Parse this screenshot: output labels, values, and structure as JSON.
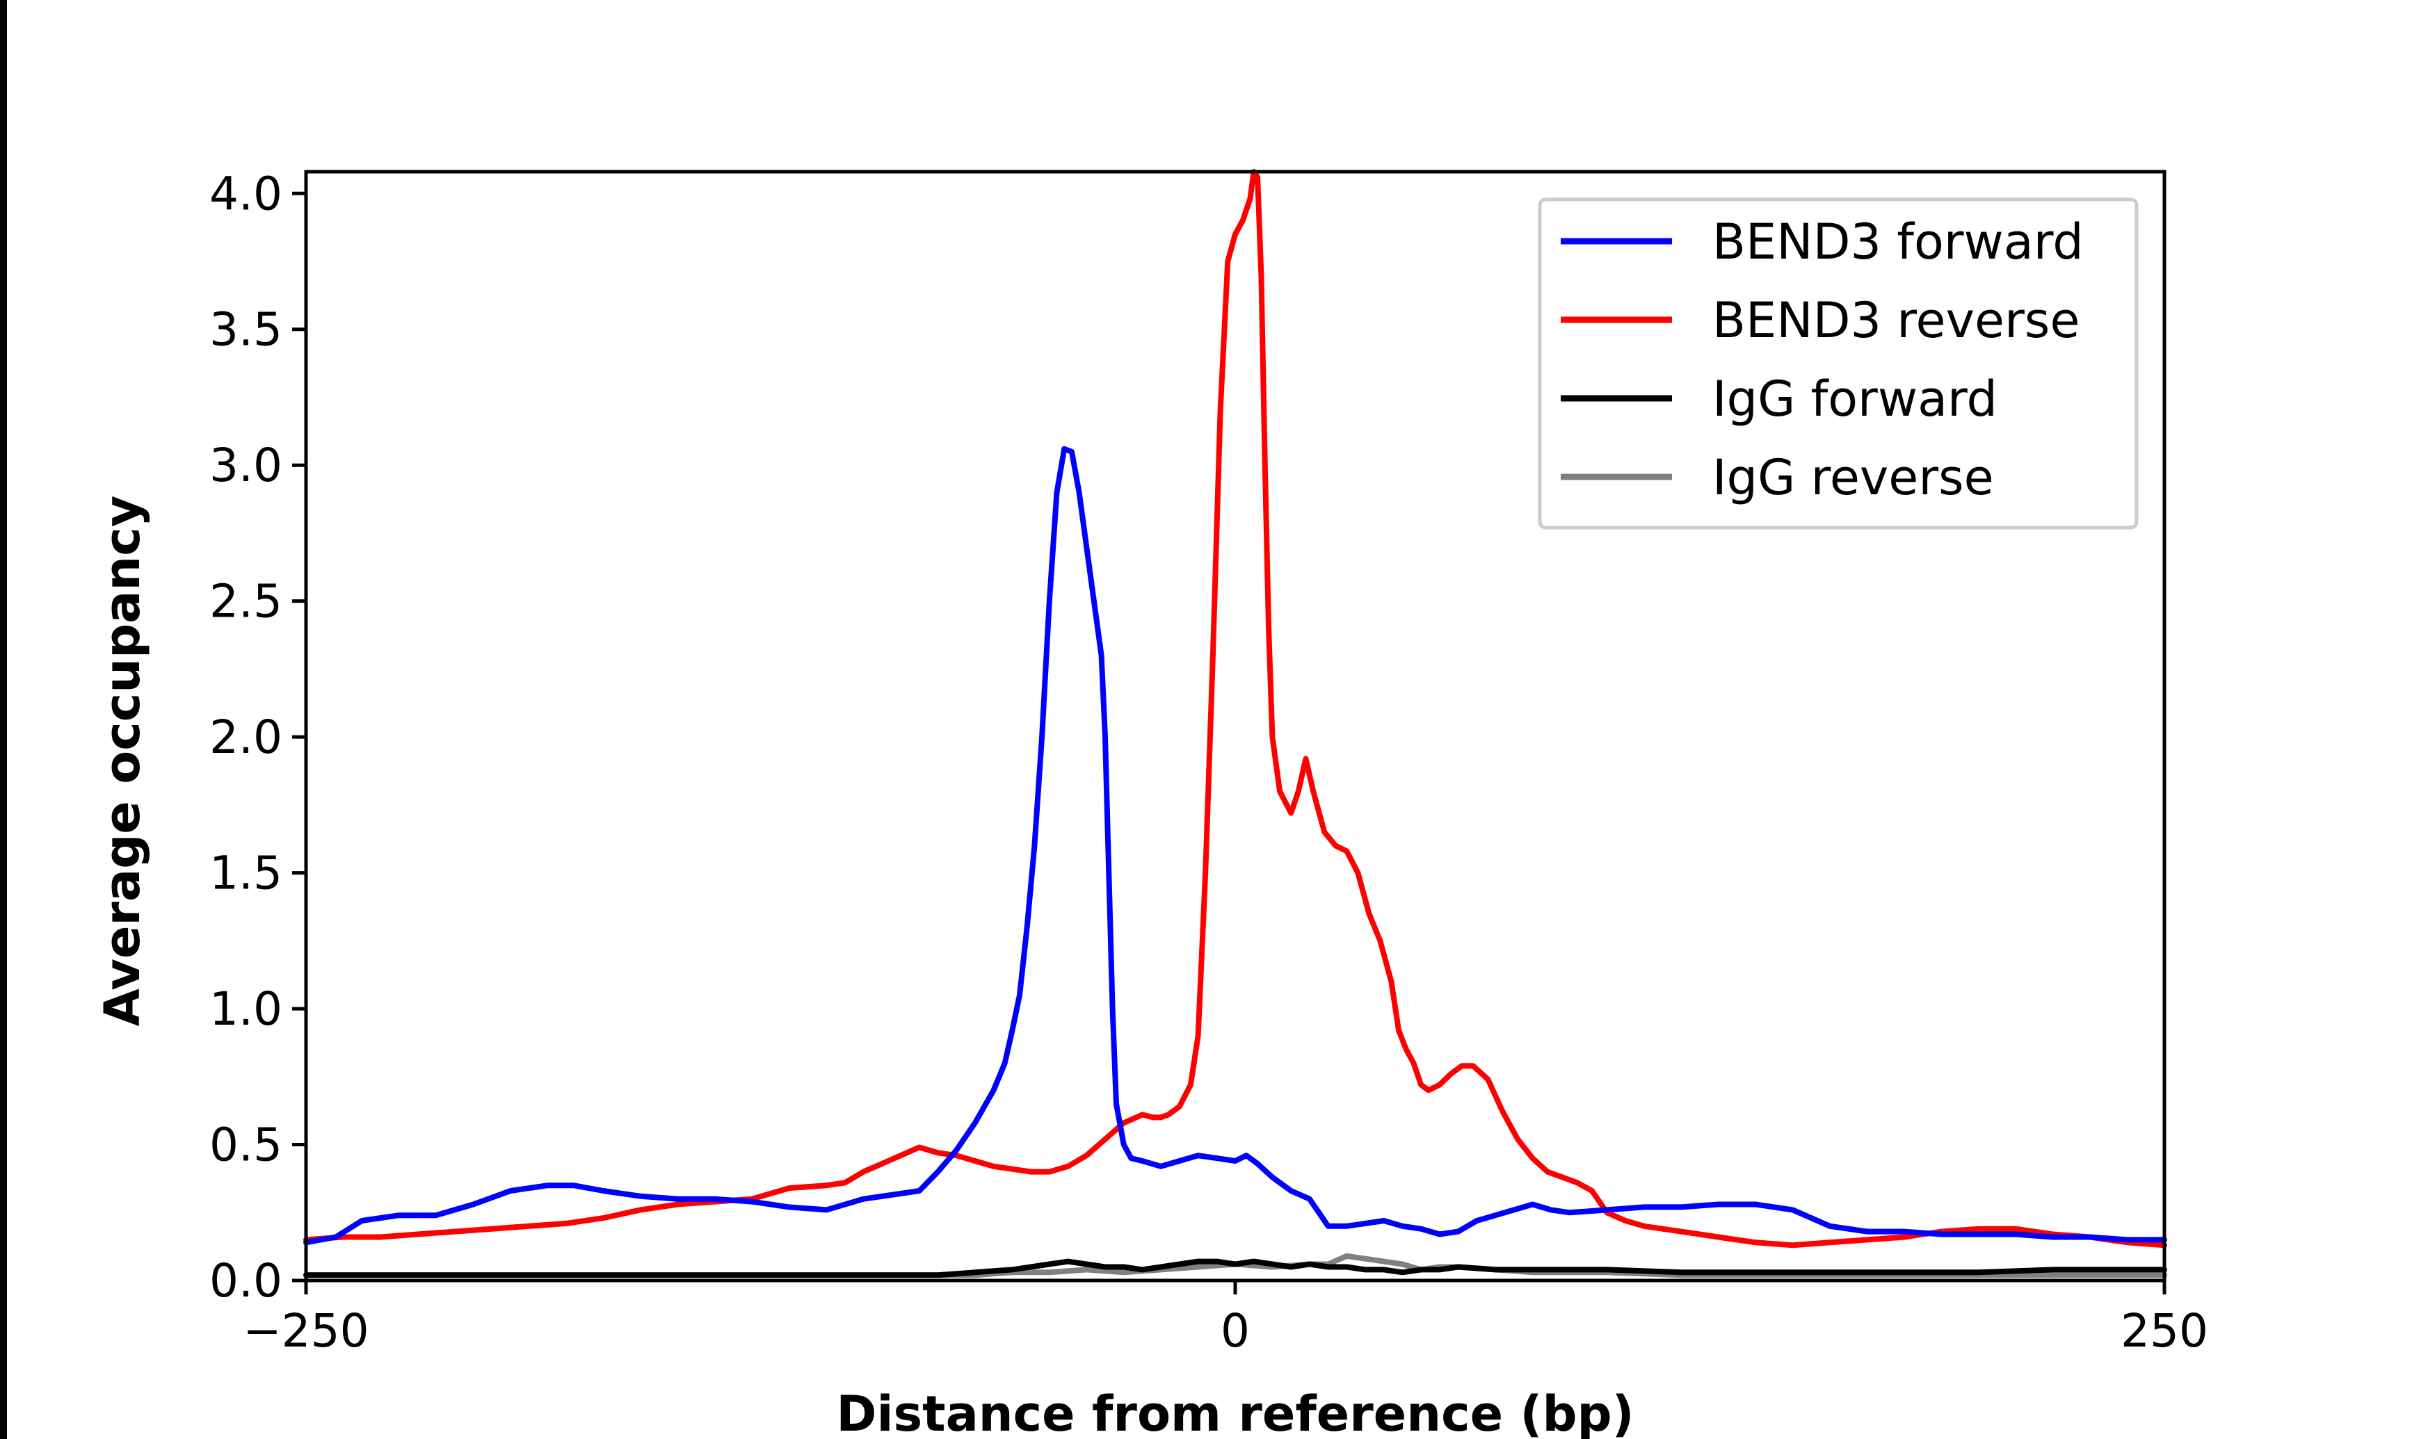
{
  "chart_data": {
    "type": "line",
    "title": "",
    "xlabel": "Distance from reference (bp)",
    "ylabel": "Average occupancy",
    "xlim": [
      -250,
      250
    ],
    "ylim": [
      0,
      4.08
    ],
    "xticks": [
      -250,
      0,
      250
    ],
    "xtick_labels": [
      "−250",
      "0",
      "250"
    ],
    "yticks": [
      0.0,
      0.5,
      1.0,
      1.5,
      2.0,
      2.5,
      3.0,
      3.5,
      4.0
    ],
    "ytick_labels": [
      "0.0",
      "0.5",
      "1.0",
      "1.5",
      "2.0",
      "2.5",
      "3.0",
      "3.5",
      "4.0"
    ],
    "grid": false,
    "legend_position": "top-right",
    "series": [
      {
        "name": "BEND3 forward",
        "color": "#0000ff",
        "points": [
          [
            -250,
            0.14
          ],
          [
            -242,
            0.16
          ],
          [
            -235,
            0.22
          ],
          [
            -225,
            0.24
          ],
          [
            -215,
            0.24
          ],
          [
            -205,
            0.28
          ],
          [
            -195,
            0.33
          ],
          [
            -185,
            0.35
          ],
          [
            -178,
            0.35
          ],
          [
            -170,
            0.33
          ],
          [
            -160,
            0.31
          ],
          [
            -150,
            0.3
          ],
          [
            -140,
            0.3
          ],
          [
            -130,
            0.29
          ],
          [
            -120,
            0.27
          ],
          [
            -110,
            0.26
          ],
          [
            -100,
            0.3
          ],
          [
            -90,
            0.32
          ],
          [
            -85,
            0.33
          ],
          [
            -80,
            0.4
          ],
          [
            -75,
            0.48
          ],
          [
            -70,
            0.58
          ],
          [
            -65,
            0.7
          ],
          [
            -62,
            0.8
          ],
          [
            -60,
            0.92
          ],
          [
            -58,
            1.05
          ],
          [
            -56,
            1.3
          ],
          [
            -54,
            1.6
          ],
          [
            -52,
            2.0
          ],
          [
            -50,
            2.5
          ],
          [
            -48,
            2.9
          ],
          [
            -46,
            3.06
          ],
          [
            -44,
            3.05
          ],
          [
            -42,
            2.9
          ],
          [
            -40,
            2.7
          ],
          [
            -38,
            2.5
          ],
          [
            -36,
            2.3
          ],
          [
            -35,
            2.0
          ],
          [
            -34,
            1.5
          ],
          [
            -33,
            1.0
          ],
          [
            -32,
            0.65
          ],
          [
            -30,
            0.5
          ],
          [
            -28,
            0.45
          ],
          [
            -25,
            0.44
          ],
          [
            -20,
            0.42
          ],
          [
            -15,
            0.44
          ],
          [
            -10,
            0.46
          ],
          [
            -5,
            0.45
          ],
          [
            0,
            0.44
          ],
          [
            3,
            0.46
          ],
          [
            6,
            0.43
          ],
          [
            10,
            0.38
          ],
          [
            15,
            0.33
          ],
          [
            20,
            0.3
          ],
          [
            25,
            0.2
          ],
          [
            30,
            0.2
          ],
          [
            35,
            0.21
          ],
          [
            40,
            0.22
          ],
          [
            45,
            0.2
          ],
          [
            50,
            0.19
          ],
          [
            55,
            0.17
          ],
          [
            60,
            0.18
          ],
          [
            65,
            0.22
          ],
          [
            70,
            0.24
          ],
          [
            75,
            0.26
          ],
          [
            80,
            0.28
          ],
          [
            85,
            0.26
          ],
          [
            90,
            0.25
          ],
          [
            100,
            0.26
          ],
          [
            110,
            0.27
          ],
          [
            120,
            0.27
          ],
          [
            130,
            0.28
          ],
          [
            140,
            0.28
          ],
          [
            150,
            0.26
          ],
          [
            160,
            0.2
          ],
          [
            170,
            0.18
          ],
          [
            180,
            0.18
          ],
          [
            190,
            0.17
          ],
          [
            200,
            0.17
          ],
          [
            210,
            0.17
          ],
          [
            220,
            0.16
          ],
          [
            230,
            0.16
          ],
          [
            240,
            0.15
          ],
          [
            250,
            0.15
          ]
        ]
      },
      {
        "name": "BEND3 reverse",
        "color": "#ff0000",
        "points": [
          [
            -250,
            0.15
          ],
          [
            -240,
            0.16
          ],
          [
            -230,
            0.16
          ],
          [
            -220,
            0.17
          ],
          [
            -210,
            0.18
          ],
          [
            -200,
            0.19
          ],
          [
            -190,
            0.2
          ],
          [
            -180,
            0.21
          ],
          [
            -170,
            0.23
          ],
          [
            -160,
            0.26
          ],
          [
            -150,
            0.28
          ],
          [
            -140,
            0.29
          ],
          [
            -130,
            0.3
          ],
          [
            -120,
            0.34
          ],
          [
            -110,
            0.35
          ],
          [
            -105,
            0.36
          ],
          [
            -100,
            0.4
          ],
          [
            -95,
            0.43
          ],
          [
            -90,
            0.46
          ],
          [
            -85,
            0.49
          ],
          [
            -80,
            0.47
          ],
          [
            -75,
            0.46
          ],
          [
            -70,
            0.44
          ],
          [
            -65,
            0.42
          ],
          [
            -60,
            0.41
          ],
          [
            -55,
            0.4
          ],
          [
            -50,
            0.4
          ],
          [
            -45,
            0.42
          ],
          [
            -40,
            0.46
          ],
          [
            -35,
            0.52
          ],
          [
            -30,
            0.58
          ],
          [
            -25,
            0.61
          ],
          [
            -22,
            0.6
          ],
          [
            -20,
            0.6
          ],
          [
            -18,
            0.61
          ],
          [
            -15,
            0.64
          ],
          [
            -12,
            0.72
          ],
          [
            -10,
            0.9
          ],
          [
            -8,
            1.5
          ],
          [
            -6,
            2.3
          ],
          [
            -4,
            3.2
          ],
          [
            -2,
            3.75
          ],
          [
            0,
            3.85
          ],
          [
            2,
            3.9
          ],
          [
            4,
            3.98
          ],
          [
            5,
            4.08
          ],
          [
            6,
            4.06
          ],
          [
            7,
            3.7
          ],
          [
            8,
            3.0
          ],
          [
            9,
            2.4
          ],
          [
            10,
            2.0
          ],
          [
            12,
            1.8
          ],
          [
            15,
            1.72
          ],
          [
            17,
            1.8
          ],
          [
            19,
            1.92
          ],
          [
            21,
            1.8
          ],
          [
            24,
            1.65
          ],
          [
            27,
            1.6
          ],
          [
            30,
            1.58
          ],
          [
            33,
            1.5
          ],
          [
            36,
            1.35
          ],
          [
            39,
            1.25
          ],
          [
            42,
            1.1
          ],
          [
            44,
            0.92
          ],
          [
            46,
            0.85
          ],
          [
            48,
            0.8
          ],
          [
            50,
            0.72
          ],
          [
            52,
            0.7
          ],
          [
            55,
            0.72
          ],
          [
            58,
            0.76
          ],
          [
            61,
            0.79
          ],
          [
            64,
            0.79
          ],
          [
            68,
            0.74
          ],
          [
            72,
            0.62
          ],
          [
            76,
            0.52
          ],
          [
            80,
            0.45
          ],
          [
            84,
            0.4
          ],
          [
            88,
            0.38
          ],
          [
            92,
            0.36
          ],
          [
            96,
            0.33
          ],
          [
            100,
            0.25
          ],
          [
            105,
            0.22
          ],
          [
            110,
            0.2
          ],
          [
            120,
            0.18
          ],
          [
            130,
            0.16
          ],
          [
            140,
            0.14
          ],
          [
            150,
            0.13
          ],
          [
            160,
            0.14
          ],
          [
            170,
            0.15
          ],
          [
            180,
            0.16
          ],
          [
            190,
            0.18
          ],
          [
            200,
            0.19
          ],
          [
            210,
            0.19
          ],
          [
            220,
            0.17
          ],
          [
            230,
            0.16
          ],
          [
            240,
            0.14
          ],
          [
            250,
            0.13
          ]
        ]
      },
      {
        "name": "IgG forward",
        "color": "#000000",
        "points": [
          [
            -250,
            0.02
          ],
          [
            -200,
            0.02
          ],
          [
            -150,
            0.02
          ],
          [
            -100,
            0.02
          ],
          [
            -80,
            0.02
          ],
          [
            -70,
            0.03
          ],
          [
            -60,
            0.04
          ],
          [
            -50,
            0.06
          ],
          [
            -45,
            0.07
          ],
          [
            -40,
            0.06
          ],
          [
            -35,
            0.05
          ],
          [
            -30,
            0.05
          ],
          [
            -25,
            0.04
          ],
          [
            -20,
            0.05
          ],
          [
            -15,
            0.06
          ],
          [
            -10,
            0.07
          ],
          [
            -5,
            0.07
          ],
          [
            0,
            0.06
          ],
          [
            5,
            0.07
          ],
          [
            10,
            0.06
          ],
          [
            15,
            0.05
          ],
          [
            20,
            0.06
          ],
          [
            25,
            0.05
          ],
          [
            30,
            0.05
          ],
          [
            35,
            0.04
          ],
          [
            40,
            0.04
          ],
          [
            45,
            0.03
          ],
          [
            50,
            0.04
          ],
          [
            55,
            0.04
          ],
          [
            60,
            0.05
          ],
          [
            70,
            0.04
          ],
          [
            80,
            0.04
          ],
          [
            90,
            0.04
          ],
          [
            100,
            0.04
          ],
          [
            120,
            0.03
          ],
          [
            140,
            0.03
          ],
          [
            160,
            0.03
          ],
          [
            180,
            0.03
          ],
          [
            200,
            0.03
          ],
          [
            220,
            0.04
          ],
          [
            240,
            0.04
          ],
          [
            250,
            0.04
          ]
        ]
      },
      {
        "name": "IgG reverse",
        "color": "#808080",
        "points": [
          [
            -250,
            0.02
          ],
          [
            -200,
            0.02
          ],
          [
            -150,
            0.02
          ],
          [
            -100,
            0.02
          ],
          [
            -80,
            0.02
          ],
          [
            -70,
            0.02
          ],
          [
            -60,
            0.03
          ],
          [
            -50,
            0.03
          ],
          [
            -40,
            0.04
          ],
          [
            -30,
            0.03
          ],
          [
            -20,
            0.04
          ],
          [
            -10,
            0.05
          ],
          [
            0,
            0.06
          ],
          [
            10,
            0.05
          ],
          [
            20,
            0.06
          ],
          [
            25,
            0.06
          ],
          [
            30,
            0.09
          ],
          [
            35,
            0.08
          ],
          [
            40,
            0.07
          ],
          [
            45,
            0.06
          ],
          [
            50,
            0.04
          ],
          [
            55,
            0.05
          ],
          [
            60,
            0.05
          ],
          [
            70,
            0.04
          ],
          [
            80,
            0.03
          ],
          [
            90,
            0.03
          ],
          [
            100,
            0.03
          ],
          [
            120,
            0.02
          ],
          [
            140,
            0.02
          ],
          [
            160,
            0.02
          ],
          [
            180,
            0.02
          ],
          [
            200,
            0.02
          ],
          [
            220,
            0.02
          ],
          [
            240,
            0.02
          ],
          [
            250,
            0.02
          ]
        ]
      }
    ]
  }
}
